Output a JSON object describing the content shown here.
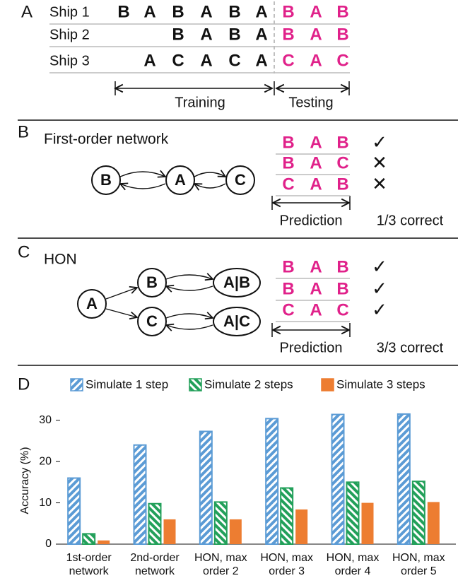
{
  "panels": {
    "A": {
      "label": "A",
      "ships": [
        {
          "name": "Ship 1",
          "training": [
            "B",
            "A",
            "B",
            "A",
            "B",
            "A"
          ],
          "testing": [
            "B",
            "A",
            "B"
          ]
        },
        {
          "name": "Ship 2",
          "training": [
            "B",
            "A",
            "B",
            "A"
          ],
          "testing": [
            "B",
            "A",
            "B"
          ]
        },
        {
          "name": "Ship 3",
          "training": [
            "A",
            "C",
            "A",
            "C",
            "A"
          ],
          "testing": [
            "C",
            "A",
            "C"
          ]
        }
      ],
      "training_label": "Training",
      "testing_label": "Testing"
    },
    "B": {
      "label": "B",
      "title": "First-order network",
      "nodes": [
        "B",
        "A",
        "C"
      ],
      "predictions": [
        [
          "B",
          "A",
          "B"
        ],
        [
          "B",
          "A",
          "C"
        ],
        [
          "C",
          "A",
          "B"
        ]
      ],
      "marks": [
        "✓",
        "✕",
        "✕"
      ],
      "prediction_label": "Prediction",
      "score": "1/3 correct"
    },
    "C": {
      "label": "C",
      "title": "HON",
      "nodes": [
        "A",
        "B",
        "A|B",
        "C",
        "A|C"
      ],
      "predictions": [
        [
          "B",
          "A",
          "B"
        ],
        [
          "B",
          "A",
          "B"
        ],
        [
          "C",
          "A",
          "C"
        ]
      ],
      "marks": [
        "✓",
        "✓",
        "✓"
      ],
      "prediction_label": "Prediction",
      "score": "3/3 correct"
    },
    "D": {
      "label": "D"
    }
  },
  "chart_data": {
    "type": "bar",
    "ylabel": "Accuracy (%)",
    "categories": [
      "1st-order network",
      "2nd-order network",
      "HON, max order 2",
      "HON, max order 3",
      "HON, max order 4",
      "HON, max order 5"
    ],
    "series": [
      {
        "name": "Simulate 1 step",
        "color": "#5b9bd5",
        "hatch": "/",
        "values": [
          16,
          24,
          27.3,
          30.4,
          31.4,
          31.5
        ]
      },
      {
        "name": "Simulate 2 steps",
        "color": "#22a05a",
        "hatch": "\\",
        "values": [
          2.5,
          9.8,
          10.2,
          13.6,
          15,
          15.2
        ]
      },
      {
        "name": "Simulate 3 steps",
        "color": "#ed7d31",
        "hatch": "none",
        "values": [
          0.9,
          6,
          6,
          8.4,
          10,
          10.2
        ]
      }
    ],
    "ylim": [
      0,
      32
    ],
    "yticks": [
      0,
      10,
      20,
      30
    ],
    "grid": false
  }
}
